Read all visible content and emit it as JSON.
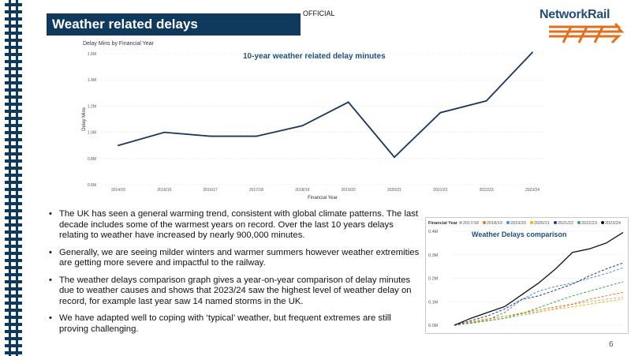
{
  "slide": {
    "title": "Weather related delays",
    "classification": "OFFICIAL",
    "page_number": "6",
    "logo_text": "NetworkRail",
    "colors": {
      "title_bar": "#10395e",
      "accent": "#e26f1e",
      "chart_line": "#1b365d",
      "rail": "#10395e"
    }
  },
  "bullets": [
    "The UK has seen a general warming trend, consistent with global climate patterns. The last decade includes some of the warmest years on record. Over the last 10 years delays relating to weather have increased by nearly 900,000 minutes.",
    "Generally, we are seeing milder winters and warmer summers however weather extremities are getting more severe and impactful to the railway.",
    "The weather delays comparison graph gives a year-on-year comparison of delay minutes due to weather causes and shows that 2023/24 saw the highest level of weather delay on record, for example last year saw 14 named storms in the UK.",
    "We have adapted well to coping with ‘typical’ weather, but frequent extremes are still proving challenging."
  ],
  "chart_data": [
    {
      "type": "line",
      "subtitle": "Delay Mins by Financial Year",
      "title": "10-year weather related delay minutes",
      "xlabel": "Financial Year",
      "ylabel": "Delay Mins",
      "categories": [
        "2014/15",
        "2015/16",
        "2016/17",
        "2017/18",
        "2018/19",
        "2019/20",
        "2020/21",
        "2021/22",
        "2022/23",
        "2023/24"
      ],
      "values": [
        900000,
        1000000,
        970000,
        970000,
        1050000,
        1230000,
        810000,
        1150000,
        1240000,
        1610000
      ],
      "ylim": [
        600000,
        1600000
      ],
      "yticks": [
        600000,
        800000,
        1000000,
        1200000,
        1400000,
        1600000
      ],
      "ytick_labels": [
        "0.6M",
        "0.8M",
        "1.0M",
        "1.2M",
        "1.4M",
        "1.6M"
      ],
      "grid": true
    },
    {
      "type": "line",
      "title": "Weather Delays comparison",
      "legend_title": "Financial Year",
      "legend_position": "top",
      "ylim": [
        0,
        400000
      ],
      "yticks": [
        0,
        100000,
        200000,
        300000,
        400000
      ],
      "ytick_labels": [
        "0.0M",
        "0.1M",
        "0.2M",
        "0.3M",
        "0.4M"
      ],
      "x": [
        0,
        1,
        2,
        3,
        4,
        5,
        6,
        7,
        8,
        9,
        10
      ],
      "series": [
        {
          "name": "2017/18",
          "color": "#b5b5b5",
          "values": [
            0,
            8000,
            18000,
            30000,
            42000,
            55000,
            72000,
            88000,
            100000,
            110000,
            120000
          ]
        },
        {
          "name": "2018/19",
          "color": "#e8742b",
          "values": [
            0,
            15000,
            28000,
            38000,
            52000,
            65000,
            78000,
            90000,
            110000,
            125000,
            140000
          ]
        },
        {
          "name": "2019/20",
          "color": "#4a8ad9",
          "values": [
            0,
            10000,
            25000,
            55000,
            110000,
            145000,
            165000,
            180000,
            200000,
            220000,
            245000
          ]
        },
        {
          "name": "2020/21",
          "color": "#f2b300",
          "values": [
            0,
            12000,
            25000,
            38000,
            48000,
            58000,
            68000,
            78000,
            90000,
            100000,
            112000
          ]
        },
        {
          "name": "2021/22",
          "color": "#1f3a93",
          "values": [
            0,
            20000,
            40000,
            70000,
            110000,
            125000,
            150000,
            175000,
            210000,
            240000,
            265000
          ]
        },
        {
          "name": "2022/23",
          "color": "#3aa655",
          "values": [
            0,
            10000,
            20000,
            30000,
            50000,
            75000,
            100000,
            125000,
            145000,
            165000,
            185000
          ]
        },
        {
          "name": "2023/24",
          "color": "#111111",
          "values": [
            0,
            30000,
            55000,
            80000,
            130000,
            180000,
            240000,
            310000,
            325000,
            350000,
            395000
          ]
        }
      ]
    }
  ]
}
